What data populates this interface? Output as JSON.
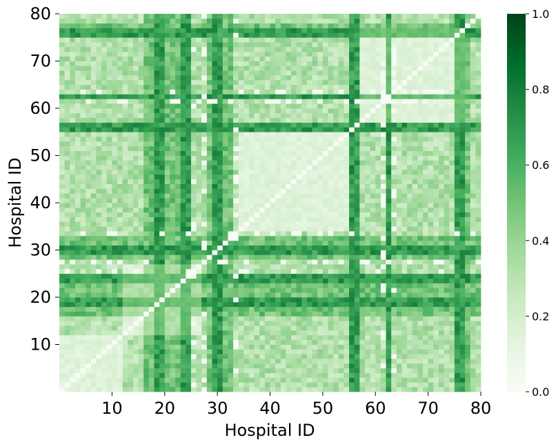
{
  "chart_data": {
    "type": "heatmap",
    "title": "",
    "xlabel": "Hospital ID",
    "ylabel": "Hospital ID",
    "n": 80,
    "xlim": [
      0,
      80
    ],
    "ylim": [
      0,
      80
    ],
    "x_ticks": [
      10,
      20,
      30,
      40,
      50,
      60,
      70,
      80
    ],
    "y_ticks": [
      10,
      20,
      30,
      40,
      50,
      60,
      70,
      80
    ],
    "colorbar": {
      "range": [
        0.0,
        1.0
      ],
      "ticks": [
        "0.0",
        "0.2",
        "0.4",
        "0.6",
        "0.8",
        "1.0"
      ],
      "colormap": "Greens",
      "colors": [
        "#f7fcf5",
        "#e5f5e0",
        "#c7e9c0",
        "#a1d99b",
        "#74c476",
        "#41ab5d",
        "#238b45",
        "#006d2c",
        "#00441b"
      ]
    },
    "matrix_description": "symmetric similarity matrix, diagonal = 0",
    "block_clusters": [
      [
        1,
        12
      ],
      [
        13,
        27
      ],
      [
        35,
        55
      ],
      [
        58,
        77
      ]
    ],
    "high_similarity_ids": [
      19,
      20,
      24,
      25,
      30,
      31,
      56,
      57,
      63,
      76,
      77
    ],
    "medium_similarity_ids": [
      17,
      18,
      21,
      22,
      23,
      29,
      32,
      33,
      78
    ],
    "white_spot_ids": [
      26,
      28,
      34,
      62,
      64
    ]
  }
}
